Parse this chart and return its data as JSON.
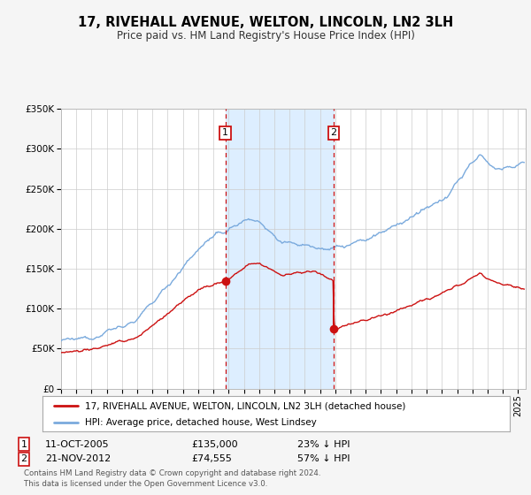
{
  "title": "17, RIVEHALL AVENUE, WELTON, LINCOLN, LN2 3LH",
  "subtitle": "Price paid vs. HM Land Registry's House Price Index (HPI)",
  "background_color": "#f5f5f5",
  "plot_bg_color": "#ffffff",
  "grid_color": "#cccccc",
  "hpi_color": "#7aaadd",
  "price_color": "#cc1111",
  "highlight_color": "#ddeeff",
  "sale1_date_num": 2005.79,
  "sale1_price": 135000,
  "sale1_label": "1",
  "sale1_text": "11-OCT-2005",
  "sale1_price_text": "£135,000",
  "sale1_pct_text": "23% ↓ HPI",
  "sale2_date_num": 2012.9,
  "sale2_price": 74555,
  "sale2_label": "2",
  "sale2_text": "21-NOV-2012",
  "sale2_price_text": "£74,555",
  "sale2_pct_text": "57% ↓ HPI",
  "xmin": 1995.0,
  "xmax": 2025.5,
  "ymin": 0,
  "ymax": 350000,
  "yticks": [
    0,
    50000,
    100000,
    150000,
    200000,
    250000,
    300000,
    350000
  ],
  "ytick_labels": [
    "£0",
    "£50K",
    "£100K",
    "£150K",
    "£200K",
    "£250K",
    "£300K",
    "£350K"
  ],
  "legend_line1": "17, RIVEHALL AVENUE, WELTON, LINCOLN, LN2 3LH (detached house)",
  "legend_line2": "HPI: Average price, detached house, West Lindsey",
  "footer_line1": "Contains HM Land Registry data © Crown copyright and database right 2024.",
  "footer_line2": "This data is licensed under the Open Government Licence v3.0."
}
